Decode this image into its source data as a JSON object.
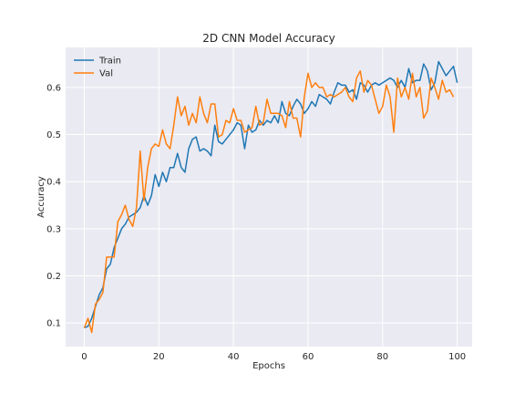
{
  "chart_data": {
    "type": "line",
    "title": "2D CNN Model Accuracy",
    "xlabel": "Epochs",
    "ylabel": "Accuracy",
    "xlim": [
      -5,
      104
    ],
    "ylim": [
      0.05,
      0.685
    ],
    "xticks": [
      0,
      20,
      40,
      60,
      80,
      100
    ],
    "yticks": [
      0.1,
      0.2,
      0.3,
      0.4,
      0.5,
      0.6
    ],
    "grid": true,
    "legend_position": "top-left",
    "background": "#eaeaf2",
    "series": [
      {
        "name": "Train",
        "color": "#1f77b4",
        "values": [
          0.09,
          0.093,
          0.11,
          0.135,
          0.16,
          0.175,
          0.215,
          0.225,
          0.26,
          0.28,
          0.3,
          0.31,
          0.325,
          0.33,
          0.335,
          0.345,
          0.37,
          0.35,
          0.37,
          0.415,
          0.39,
          0.42,
          0.4,
          0.43,
          0.43,
          0.46,
          0.43,
          0.42,
          0.47,
          0.49,
          0.495,
          0.465,
          0.47,
          0.465,
          0.455,
          0.52,
          0.485,
          0.48,
          0.49,
          0.5,
          0.51,
          0.525,
          0.52,
          0.47,
          0.52,
          0.505,
          0.51,
          0.53,
          0.52,
          0.53,
          0.525,
          0.54,
          0.525,
          0.57,
          0.545,
          0.54,
          0.56,
          0.575,
          0.565,
          0.545,
          0.555,
          0.57,
          0.56,
          0.585,
          0.58,
          0.575,
          0.565,
          0.59,
          0.61,
          0.605,
          0.605,
          0.59,
          0.595,
          0.575,
          0.61,
          0.605,
          0.59,
          0.605,
          0.61,
          0.605,
          0.61,
          0.615,
          0.62,
          0.615,
          0.6,
          0.615,
          0.6,
          0.64,
          0.61,
          0.615,
          0.615,
          0.65,
          0.635,
          0.595,
          0.61,
          0.655,
          0.64,
          0.625,
          0.635,
          0.645,
          0.61
        ]
      },
      {
        "name": "Val",
        "color": "#ff7f0e",
        "values": [
          0.09,
          0.11,
          0.08,
          0.14,
          0.15,
          0.165,
          0.24,
          0.24,
          0.24,
          0.315,
          0.33,
          0.35,
          0.32,
          0.305,
          0.345,
          0.465,
          0.36,
          0.43,
          0.47,
          0.48,
          0.475,
          0.51,
          0.48,
          0.47,
          0.52,
          0.58,
          0.54,
          0.56,
          0.52,
          0.545,
          0.525,
          0.58,
          0.545,
          0.525,
          0.565,
          0.565,
          0.495,
          0.5,
          0.53,
          0.525,
          0.555,
          0.53,
          0.53,
          0.505,
          0.51,
          0.515,
          0.56,
          0.52,
          0.525,
          0.575,
          0.545,
          0.545,
          0.545,
          0.54,
          0.515,
          0.57,
          0.535,
          0.535,
          0.495,
          0.58,
          0.63,
          0.6,
          0.61,
          0.6,
          0.6,
          0.58,
          0.585,
          0.58,
          0.585,
          0.59,
          0.6,
          0.58,
          0.57,
          0.62,
          0.635,
          0.59,
          0.615,
          0.605,
          0.575,
          0.545,
          0.56,
          0.605,
          0.58,
          0.505,
          0.62,
          0.58,
          0.6,
          0.575,
          0.63,
          0.58,
          0.6,
          0.535,
          0.55,
          0.62,
          0.6,
          0.575,
          0.615,
          0.59,
          0.595,
          0.58
        ]
      }
    ]
  }
}
